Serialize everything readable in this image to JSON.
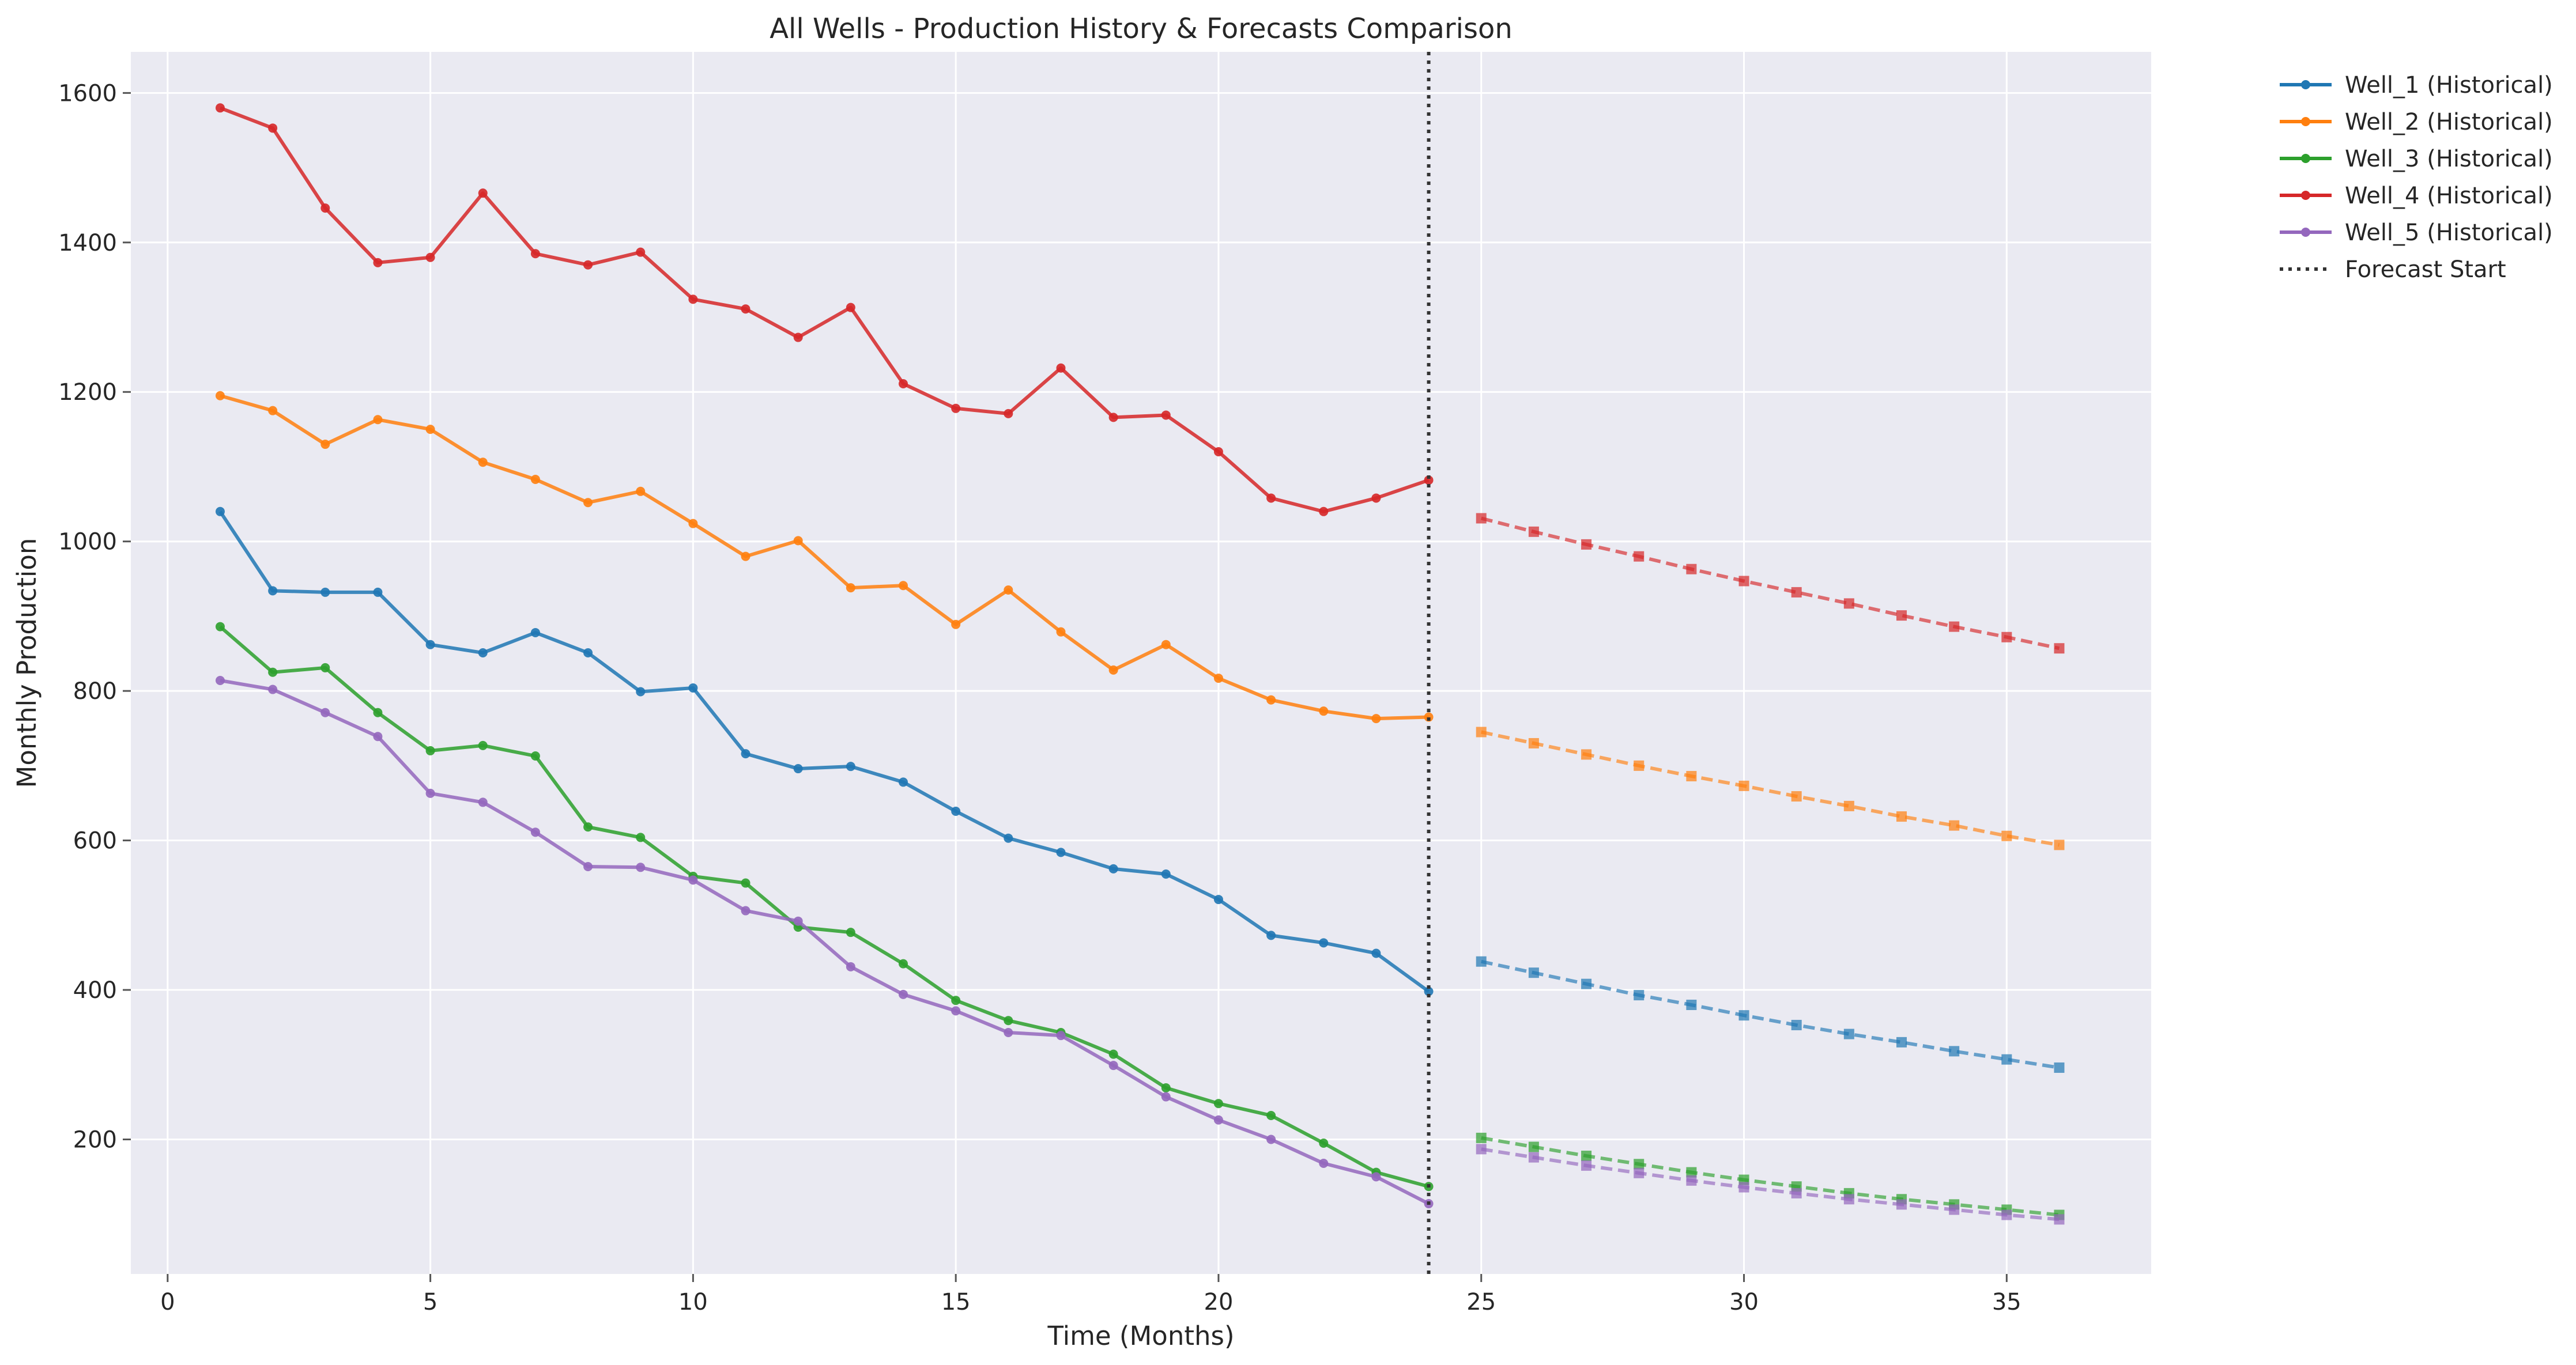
{
  "chart_data": {
    "type": "line",
    "title": "All Wells - Production History & Forecasts Comparison",
    "xlabel": "Time (Months)",
    "ylabel": "Monthly Production",
    "xlim": [
      -0.7,
      37.75
    ],
    "ylim": [
      20,
      1655
    ],
    "xticks": [
      0,
      5,
      10,
      15,
      20,
      25,
      30,
      35
    ],
    "yticks": [
      200,
      400,
      600,
      800,
      1000,
      1200,
      1400,
      1600
    ],
    "grid": true,
    "legend_position": "outside-top-right",
    "forecast_start": 24,
    "forecast_start_label": "Forecast Start",
    "historical_months": [
      1,
      2,
      3,
      4,
      5,
      6,
      7,
      8,
      9,
      10,
      11,
      12,
      13,
      14,
      15,
      16,
      17,
      18,
      19,
      20,
      21,
      22,
      23,
      24
    ],
    "forecast_months": [
      25,
      26,
      27,
      28,
      29,
      30,
      31,
      32,
      33,
      34,
      35,
      36
    ],
    "series": [
      {
        "name": "Well_1 (Historical)",
        "color": "#1f77b4",
        "historical": [
          1040,
          934,
          932,
          932,
          862,
          851,
          878,
          851,
          799,
          804,
          716,
          696,
          699,
          678,
          639,
          603,
          584,
          562,
          555,
          521,
          473,
          463,
          449,
          398
        ],
        "forecast": [
          438,
          423,
          408,
          393,
          380,
          366,
          353,
          341,
          330,
          318,
          307,
          296
        ]
      },
      {
        "name": "Well_2 (Historical)",
        "color": "#ff7f0e",
        "historical": [
          1195,
          1175,
          1130,
          1163,
          1150,
          1106,
          1083,
          1052,
          1067,
          1024,
          980,
          1001,
          938,
          941,
          889,
          935,
          879,
          828,
          862,
          817,
          788,
          773,
          763,
          765
        ],
        "forecast": [
          745,
          730,
          715,
          700,
          686,
          673,
          659,
          646,
          632,
          620,
          606,
          594
        ]
      },
      {
        "name": "Well_3 (Historical)",
        "color": "#2ca02c",
        "historical": [
          886,
          825,
          831,
          771,
          720,
          727,
          713,
          618,
          604,
          552,
          543,
          484,
          477,
          435,
          386,
          359,
          343,
          314,
          269,
          248,
          232,
          195,
          156,
          137
        ],
        "forecast": [
          202,
          190,
          178,
          167,
          156,
          146,
          137,
          128,
          120,
          113,
          106,
          99
        ]
      },
      {
        "name": "Well_4 (Historical)",
        "color": "#d62728",
        "historical": [
          1580,
          1553,
          1446,
          1373,
          1380,
          1466,
          1385,
          1370,
          1387,
          1324,
          1311,
          1273,
          1313,
          1211,
          1178,
          1171,
          1232,
          1166,
          1169,
          1120,
          1058,
          1040,
          1058,
          1082
        ],
        "forecast": [
          1031,
          1013,
          996,
          980,
          963,
          947,
          932,
          917,
          901,
          886,
          872,
          857
        ]
      },
      {
        "name": "Well_5 (Historical)",
        "color": "#9467bd",
        "historical": [
          814,
          802,
          771,
          739,
          663,
          651,
          611,
          565,
          564,
          547,
          506,
          492,
          431,
          394,
          372,
          343,
          339,
          299,
          257,
          226,
          200,
          168,
          150,
          114
        ],
        "forecast": [
          187,
          176,
          165,
          155,
          145,
          136,
          128,
          120,
          113,
          106,
          99,
          93
        ]
      }
    ]
  }
}
